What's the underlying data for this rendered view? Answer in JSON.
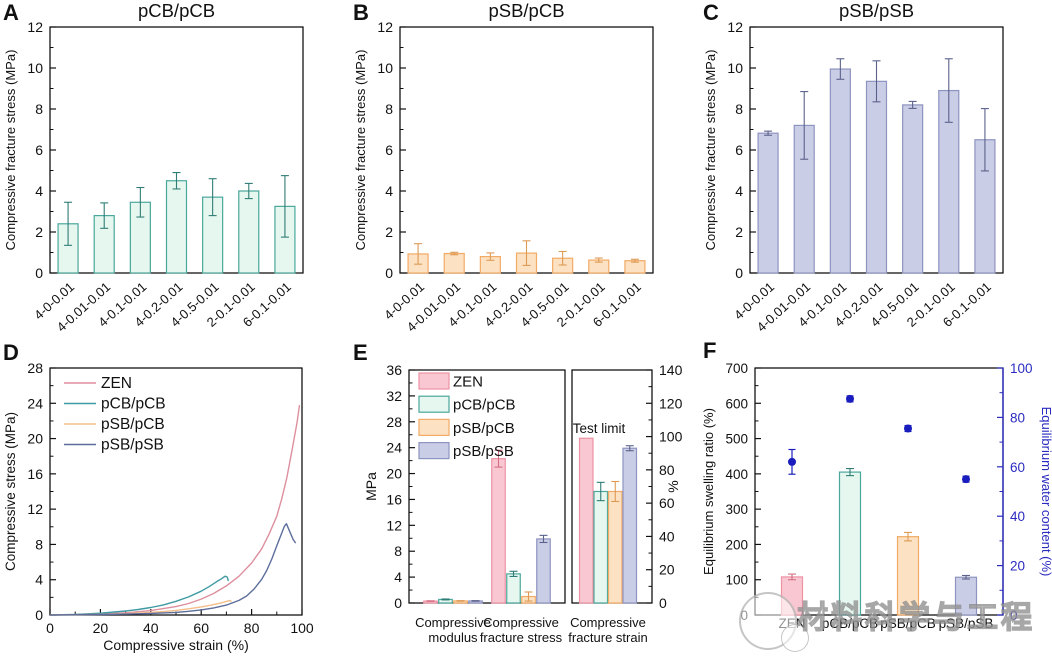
{
  "watermark": {
    "text": "材料科学与工程"
  },
  "chart_data": [
    {
      "panel": "A",
      "type": "bar",
      "title": "pCB/pCB",
      "ylabel": "Compressive fracture stress (MPa)",
      "ylim": [
        0,
        12
      ],
      "ytick_step": 2,
      "yminor_step": 1,
      "categories": [
        "4-0-0.01",
        "4-0.01-0.01",
        "4-0.1-0.01",
        "4-0.2-0.01",
        "4-0.5-0.01",
        "2-0.1-0.01",
        "6-0.1-0.01"
      ],
      "values": [
        2.4,
        2.8,
        3.45,
        4.5,
        3.7,
        4.0,
        3.25
      ],
      "errors": [
        1.05,
        0.62,
        0.72,
        0.4,
        0.9,
        0.37,
        1.5
      ],
      "colors": {
        "fill": "#e6f7f0",
        "edge": "#4aa79b",
        "err": "#2f7d75"
      }
    },
    {
      "panel": "B",
      "type": "bar",
      "title": "pSB/pCB",
      "ylabel": "Compressive fracture stress (MPa)",
      "ylim": [
        0,
        12
      ],
      "ytick_step": 2,
      "yminor_step": 1,
      "categories": [
        "4-0-0.01",
        "4-0.01-0.01",
        "4-0.1-0.01",
        "4-0.2-0.01",
        "4-0.5-0.01",
        "2-0.1-0.01",
        "6-0.1-0.01"
      ],
      "values": [
        0.93,
        0.95,
        0.8,
        0.97,
        0.72,
        0.63,
        0.6
      ],
      "errors": [
        0.5,
        0.06,
        0.18,
        0.6,
        0.33,
        0.1,
        0.07
      ],
      "colors": {
        "fill": "#fce1c2",
        "edge": "#f2ab66",
        "err": "#dd9a55"
      }
    },
    {
      "panel": "C",
      "type": "bar",
      "title": "pSB/pSB",
      "ylabel": "Compressive fracture stress (MPa)",
      "ylim": [
        0,
        12
      ],
      "ytick_step": 2,
      "yminor_step": 1,
      "categories": [
        "4-0-0.01",
        "4-0.01-0.01",
        "4-0.1-0.01",
        "4-0.2-0.01",
        "4-0.5-0.01",
        "2-0.1-0.01",
        "6-0.1-0.01"
      ],
      "values": [
        6.82,
        7.2,
        9.95,
        9.35,
        8.2,
        8.9,
        6.5
      ],
      "errors": [
        0.1,
        1.65,
        0.5,
        1.0,
        0.17,
        1.55,
        1.52
      ],
      "colors": {
        "fill": "#cacde6",
        "edge": "#8e94c0",
        "err": "#5b628a"
      }
    },
    {
      "panel": "D",
      "type": "line",
      "xlabel": "Compressive strain (%)",
      "ylabel": "Compressive stress (MPa)",
      "xlim": [
        0,
        100
      ],
      "ylim": [
        0,
        28
      ],
      "xtick_step": 20,
      "ytick_step": 4,
      "xminor_step": 10,
      "yminor_step": 2,
      "legend_position": "top-left",
      "series": [
        {
          "name": "ZEN",
          "color": "#dd8f9e",
          "points": [
            [
              0,
              0
            ],
            [
              10,
              0.05
            ],
            [
              20,
              0.12
            ],
            [
              30,
              0.25
            ],
            [
              40,
              0.5
            ],
            [
              50,
              0.95
            ],
            [
              55,
              1.3
            ],
            [
              60,
              1.8
            ],
            [
              65,
              2.45
            ],
            [
              70,
              3.3
            ],
            [
              75,
              4.4
            ],
            [
              80,
              5.9
            ],
            [
              84,
              7.5
            ],
            [
              87,
              9.2
            ],
            [
              90,
              11.2
            ],
            [
              92,
              13.2
            ],
            [
              94,
              15.6
            ],
            [
              96,
              18.6
            ],
            [
              98,
              21.8
            ],
            [
              99,
              23.8
            ]
          ]
        },
        {
          "name": "pCB/pCB",
          "color": "#3f9aa3",
          "points": [
            [
              0,
              0
            ],
            [
              10,
              0.07
            ],
            [
              20,
              0.2
            ],
            [
              30,
              0.45
            ],
            [
              35,
              0.62
            ],
            [
              40,
              0.85
            ],
            [
              45,
              1.15
            ],
            [
              50,
              1.55
            ],
            [
              55,
              2.05
            ],
            [
              60,
              2.7
            ],
            [
              63,
              3.2
            ],
            [
              66,
              3.75
            ],
            [
              68,
              4.1
            ],
            [
              69.5,
              4.4
            ],
            [
              70.3,
              4.3
            ],
            [
              70.8,
              3.85
            ]
          ]
        },
        {
          "name": "pSB/pCB",
          "color": "#f4be8a",
          "points": [
            [
              0,
              0
            ],
            [
              10,
              0.03
            ],
            [
              20,
              0.08
            ],
            [
              30,
              0.15
            ],
            [
              40,
              0.28
            ],
            [
              45,
              0.38
            ],
            [
              50,
              0.52
            ],
            [
              55,
              0.7
            ],
            [
              60,
              0.92
            ],
            [
              64,
              1.12
            ],
            [
              67,
              1.32
            ],
            [
              69,
              1.45
            ],
            [
              70.5,
              1.58
            ],
            [
              71.5,
              1.66
            ],
            [
              72,
              1.5
            ]
          ]
        },
        {
          "name": "pSB/pSB",
          "color": "#5d6e9c",
          "points": [
            [
              0,
              0
            ],
            [
              10,
              0.03
            ],
            [
              20,
              0.06
            ],
            [
              30,
              0.1
            ],
            [
              40,
              0.18
            ],
            [
              50,
              0.3
            ],
            [
              55,
              0.42
            ],
            [
              60,
              0.58
            ],
            [
              65,
              0.8
            ],
            [
              70,
              1.12
            ],
            [
              75,
              1.65
            ],
            [
              78,
              2.15
            ],
            [
              81,
              2.95
            ],
            [
              84,
              4.05
            ],
            [
              86,
              5.05
            ],
            [
              88,
              6.35
            ],
            [
              90,
              7.85
            ],
            [
              91.5,
              8.95
            ],
            [
              93,
              10.05
            ],
            [
              93.8,
              10.35
            ],
            [
              94.5,
              9.9
            ],
            [
              95.5,
              9.2
            ],
            [
              96.5,
              8.55
            ],
            [
              97.5,
              8.15
            ]
          ]
        }
      ]
    },
    {
      "panel": "E",
      "type": "grouped-bar",
      "legend": [
        "ZEN",
        "pCB/pCB",
        "pSB/pCB",
        "pSB/pSB"
      ],
      "series_colors": {
        "fills": [
          "#f9c7d1",
          "#e6f7f0",
          "#fce1c2",
          "#cacde6"
        ],
        "edges": [
          "#ec92a4",
          "#4aa79b",
          "#f2ab66",
          "#8e94c0"
        ],
        "errs": [
          "#d46f85",
          "#2f7d75",
          "#dd9a55",
          "#5b628a"
        ]
      },
      "left_axis": {
        "label": "MPa",
        "ylim": [
          0,
          36
        ],
        "ytick_step": 4,
        "yminor_step": 2,
        "groups": [
          {
            "label": [
              "Compressive",
              "modulus"
            ],
            "values": [
              0.3,
              0.55,
              0.32,
              0.32
            ],
            "errors": [
              0.04,
              0.07,
              0.04,
              0.04
            ]
          },
          {
            "label": [
              "Compressive",
              "fracture stress"
            ],
            "values": [
              22.3,
              4.5,
              1.0,
              9.9
            ],
            "errors": [
              1.3,
              0.4,
              0.7,
              0.55
            ]
          }
        ]
      },
      "right_axis": {
        "label": "%",
        "ylim": [
          0,
          140
        ],
        "ytick_step": 20,
        "yminor_step": 10,
        "groups": [
          {
            "label": [
              "Compressive",
              "fracture strain"
            ],
            "values": [
              99,
              67,
              67,
              93
            ],
            "errors": [
              0,
              5.5,
              6,
              1.5
            ]
          }
        ],
        "annotation": "Test limit"
      }
    },
    {
      "panel": "F",
      "type": "bar-scatter",
      "categories": [
        "ZEN",
        "pCB/pCB",
        "pSB/pCB",
        "pSB/pSB"
      ],
      "left_axis": {
        "label": "Equilibrium swelling ratio (%)",
        "ylim": [
          0,
          700
        ],
        "ytick_step": 100,
        "yminor_step": 50,
        "color": "#111111"
      },
      "right_axis": {
        "label": "Equilibrium water content (%)",
        "ylim": [
          0,
          100
        ],
        "ytick_step": 20,
        "yminor_step": 10,
        "color": "#2b2bc0"
      },
      "bars": {
        "values": [
          108,
          405,
          222,
          107
        ],
        "errors": [
          8,
          10,
          12,
          5
        ],
        "fills": [
          "#f9c7d1",
          "#e6f7f0",
          "#fce1c2",
          "#cacde6"
        ],
        "edges": [
          "#ec92a4",
          "#4aa79b",
          "#f2ab66",
          "#8e94c0"
        ],
        "errs": [
          "#d46f85",
          "#2f7d75",
          "#dd9a55",
          "#5b628a"
        ]
      },
      "dots": {
        "values": [
          62,
          87.5,
          75.5,
          55
        ],
        "errors": [
          5,
          1.2,
          1.2,
          1.2
        ],
        "color": "#1a1dbd"
      }
    }
  ]
}
